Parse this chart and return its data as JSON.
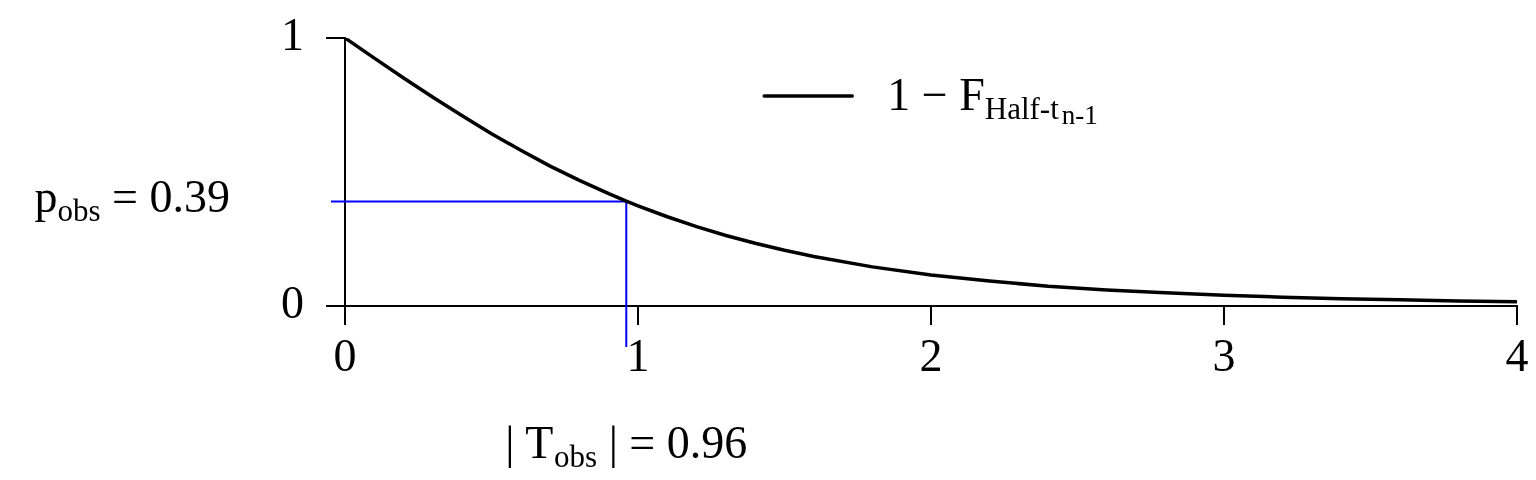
{
  "chart_data": {
    "type": "line",
    "x": [
      0,
      0.1,
      0.2,
      0.3,
      0.4,
      0.5,
      0.6,
      0.7,
      0.8,
      0.9,
      0.96,
      1,
      1.1,
      1.2,
      1.3,
      1.4,
      1.5,
      1.6,
      1.8,
      2,
      2.2,
      2.4,
      2.6,
      2.8,
      3,
      3.2,
      3.4,
      3.6,
      3.8,
      4
    ],
    "series": [
      {
        "name": "1 − F$_{Half-t}$$_{n-1}$",
        "color": "#000000",
        "values": [
          1,
          0.925,
          0.851,
          0.779,
          0.71,
          0.643,
          0.581,
          0.522,
          0.469,
          0.419,
          0.391,
          0.374,
          0.333,
          0.296,
          0.263,
          0.234,
          0.208,
          0.185,
          0.146,
          0.116,
          0.093,
          0.074,
          0.06,
          0.049,
          0.04,
          0.033,
          0.027,
          0.023,
          0.019,
          0.016
        ]
      }
    ],
    "xlim": [
      0,
      4
    ],
    "xticks": [
      0,
      1,
      2,
      3,
      4
    ],
    "ylim": [
      0,
      1
    ],
    "yticks": [
      0,
      1
    ],
    "ref_lines": [
      {
        "axis": "y",
        "value": 0.39,
        "label": "p$_{obs}$ = 0.39",
        "color": "#0000ff"
      },
      {
        "axis": "x",
        "value": 0.96,
        "label": "| T$_{obs}$ | = 0.96",
        "color": "#0000ff"
      }
    ],
    "legend": "top"
  }
}
